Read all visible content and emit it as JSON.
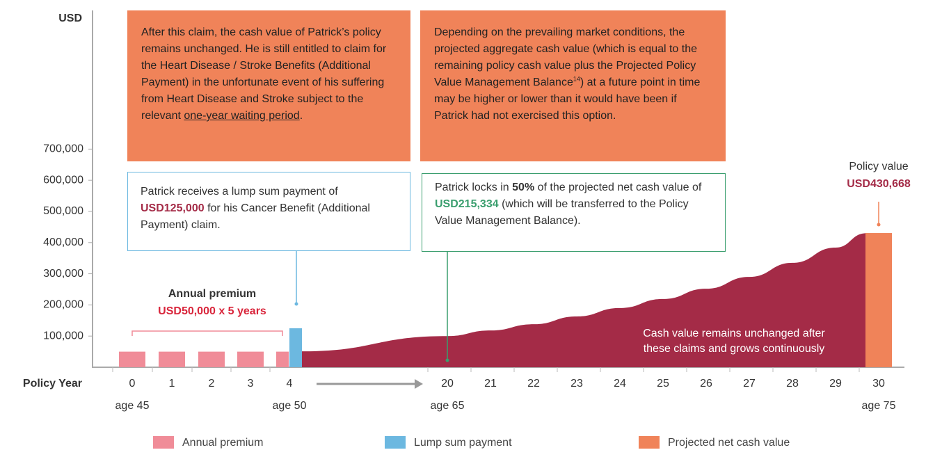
{
  "chart_data": {
    "type": "bar",
    "y_label": "USD",
    "x_label": "Policy Year",
    "categories": [
      "0",
      "1",
      "2",
      "3",
      "4",
      "20",
      "21",
      "22",
      "23",
      "24",
      "25",
      "26",
      "27",
      "28",
      "29",
      "30"
    ],
    "ages": [
      "age 45",
      null,
      null,
      null,
      "age 50",
      "age 65",
      null,
      null,
      null,
      null,
      null,
      null,
      null,
      null,
      null,
      "age 75"
    ],
    "series": [
      {
        "name": "Annual premium",
        "color": "#f08c98",
        "values": [
          50000,
          50000,
          50000,
          50000,
          50000,
          null,
          null,
          null,
          null,
          null,
          null,
          null,
          null,
          null,
          null,
          null
        ]
      },
      {
        "name": "Lump sum payment",
        "color": "#6cb8e0",
        "values": [
          null,
          null,
          null,
          null,
          125000,
          null,
          null,
          null,
          null,
          null,
          null,
          null,
          null,
          null,
          null,
          null
        ]
      },
      {
        "name": "Projected net cash value",
        "color": "#f08359",
        "values": [
          null,
          null,
          null,
          null,
          null,
          null,
          null,
          null,
          null,
          null,
          null,
          null,
          null,
          null,
          null,
          430668
        ]
      }
    ],
    "area": {
      "color": "#a42b47",
      "values": [
        null,
        null,
        null,
        null,
        51000,
        100000,
        118000,
        138000,
        163000,
        190000,
        219000,
        252000,
        290000,
        335000,
        384000,
        430000
      ]
    },
    "ylim": [
      0,
      1145000
    ],
    "yticks": [
      {
        "value": 100000,
        "label": "100,000"
      },
      {
        "value": 200000,
        "label": "200,000"
      },
      {
        "value": 300000,
        "label": "300,000"
      },
      {
        "value": 400000,
        "label": "400,000"
      },
      {
        "value": 500000,
        "label": "500,000"
      },
      {
        "value": 600000,
        "label": "600,000"
      },
      {
        "value": 700000,
        "label": "700,000"
      }
    ],
    "annotations": {
      "claim_note": [
        "After this claim, the cash value of Patrick’s policy remains unchanged. He is still entitled to claim for the Heart Disease / Stroke Benefits (Additional Payment) in the unfortunate event of his suffering from Heart Disease and Stroke subject to the relevant ",
        "one-year waiting period",
        "."
      ],
      "market_note": [
        "Depending on the prevailing market conditions, the projected aggregate cash value (which is equal to the remaining policy cash value plus the Projected Policy Value Management Balance",
        "14",
        ") at a future point in time may be higher or lower than it would have been if Patrick had not exercised this option."
      ],
      "lump_sum_note": [
        "Patrick receives a lump sum payment of ",
        "USD125,000",
        " for his Cancer Benefit (Additional Payment) claim."
      ],
      "lock_in_note": [
        "Patrick locks in ",
        "50%",
        " of the projected net cash value of ",
        "USD215,334",
        " (which will be transferred to the Policy Value Management Balance)."
      ],
      "premium_label": "Annual premium",
      "premium_amount": "USD50,000 x 5 years",
      "policy_value_label": "Policy value",
      "policy_value_amount": "USD430,668",
      "area_note": [
        "Cash value remains unchanged after",
        "these claims and grows continuously"
      ]
    }
  }
}
